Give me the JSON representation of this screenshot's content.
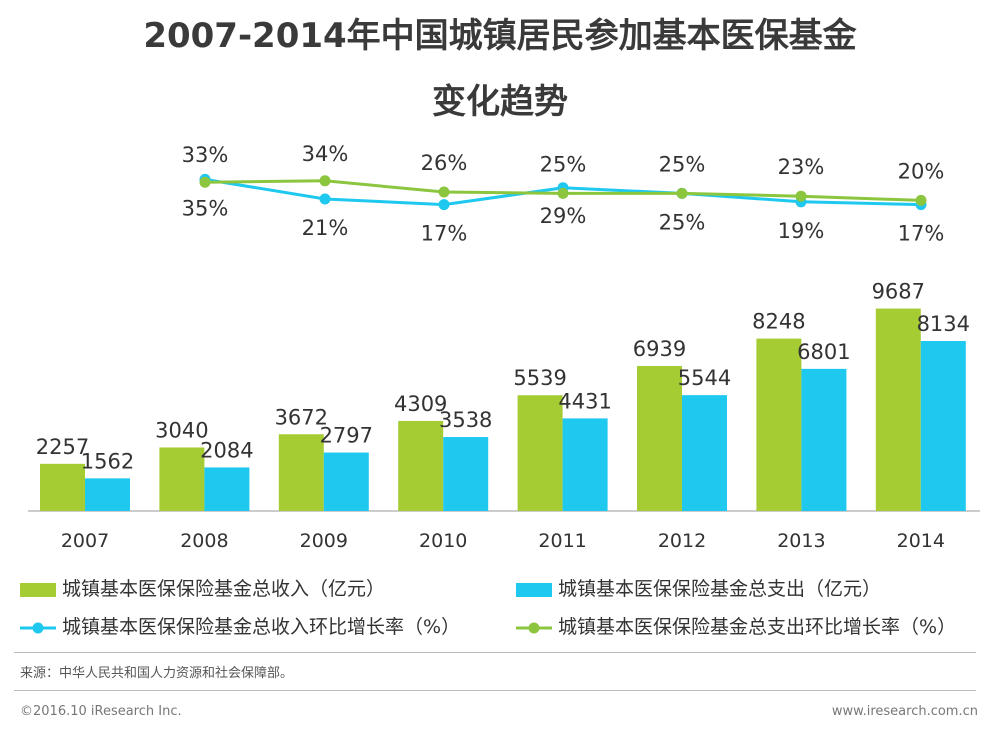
{
  "chart_data": {
    "type": "bar+line",
    "title_line1": "2007-2014年中国城镇居民参加基本医保基金",
    "title_line2": "变化趋势",
    "categories": [
      "2007",
      "2008",
      "2009",
      "2010",
      "2011",
      "2012",
      "2013",
      "2014"
    ],
    "bar_series": [
      {
        "name": "城镇基本医保保险基金总收入（亿元）",
        "color": "#a6cc33",
        "values": [
          2257,
          3040,
          3672,
          4309,
          5539,
          6939,
          8248,
          9687
        ]
      },
      {
        "name": "城镇基本医保保险基金总支出（亿元）",
        "color": "#1ec8ef",
        "values": [
          1562,
          2084,
          2797,
          3538,
          4431,
          5544,
          6801,
          8134
        ]
      }
    ],
    "line_series": [
      {
        "name": "城镇基本医保保险基金总收入环比增长率（%）",
        "color": "#1ec8ef",
        "values": [
          35,
          21,
          17,
          29,
          25,
          19,
          17
        ],
        "labels": [
          "35%",
          "21%",
          "17%",
          "29%",
          "25%",
          "19%",
          "17%"
        ]
      },
      {
        "name": "城镇基本医保保险基金总支出环比增长率（%）",
        "color": "#8cc63f",
        "values": [
          33,
          34,
          26,
          25,
          25,
          23,
          20
        ],
        "labels": [
          "33%",
          "34%",
          "26%",
          "25%",
          "25%",
          "23%",
          "20%"
        ]
      }
    ],
    "ylim_bars": [
      0,
      10000
    ],
    "ylim_lines": [
      10,
      40
    ]
  },
  "source": "来源：中华人民共和国人力资源和社会保障部。",
  "footer_left": "©2016.10 iResearch Inc.",
  "footer_right": "www.iresearch.com.cn"
}
